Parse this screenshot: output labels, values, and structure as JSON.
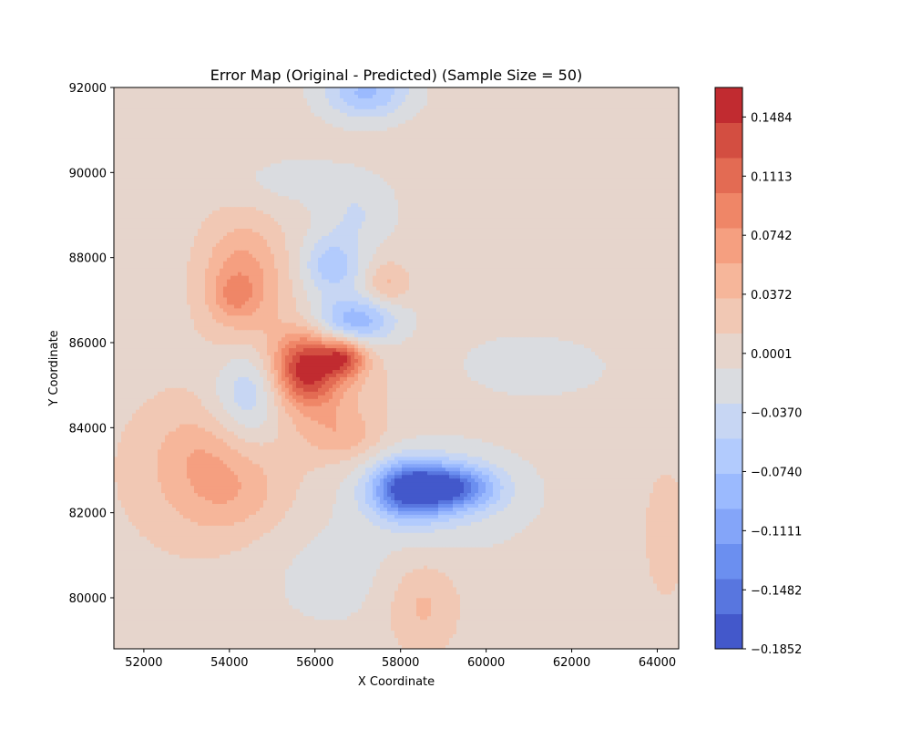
{
  "chart_data": {
    "type": "heatmap",
    "subtype": "filled-contour",
    "title": "Error Map (Original - Predicted) (Sample Size = 50)",
    "xlabel": "X Coordinate",
    "ylabel": "Y Coordinate",
    "xlim": [
      51300,
      64500
    ],
    "ylim": [
      78800,
      92000
    ],
    "x_ticks": [
      "52000",
      "54000",
      "56000",
      "58000",
      "60000",
      "62000",
      "64000"
    ],
    "y_ticks": [
      "80000",
      "82000",
      "84000",
      "86000",
      "88000",
      "90000",
      "92000"
    ],
    "colormap": "coolwarm",
    "background_color": "#dddddd",
    "colorbar": {
      "min": -0.1852,
      "max": 0.1669,
      "levels": 19,
      "tick_labels": [
        "0.1484",
        "0.1113",
        "0.0742",
        "0.0372",
        "0.0001",
        "−0.0370",
        "−0.0740",
        "−0.1111",
        "−0.1482",
        "−0.1852"
      ],
      "tick_values": [
        0.1484,
        0.1113,
        0.0742,
        0.0372,
        0.0001,
        -0.037,
        -0.074,
        -0.1111,
        -0.1482,
        -0.1852
      ],
      "colors": [
        "#4358cb",
        "#5876df",
        "#6b8ff0",
        "#84a5f9",
        "#9bbafe",
        "#b2cbfd",
        "#c7d6f3",
        "#dadce0",
        "#e6d5cc",
        "#f1c8b4",
        "#f6b69a",
        "#f59f80",
        "#ef8667",
        "#e36b53",
        "#d34e41",
        "#c12b30"
      ]
    },
    "regions": [
      {
        "name": "broad-warm-west",
        "x": 53200,
        "y": 83000,
        "sx": 1400,
        "sy": 1500,
        "v": 0.03
      },
      {
        "name": "warm-blob-53800-82500",
        "x": 54000,
        "y": 82500,
        "sx": 900,
        "sy": 700,
        "v": 0.035
      },
      {
        "name": "warm-blob-53500-83500",
        "x": 53300,
        "y": 83500,
        "sx": 700,
        "sy": 600,
        "v": 0.02
      },
      {
        "name": "warm-ridge-54500-87500",
        "x": 54300,
        "y": 87500,
        "sx": 700,
        "sy": 1000,
        "v": 0.07
      },
      {
        "name": "warm-peak-54000-87200",
        "x": 54100,
        "y": 87100,
        "sx": 350,
        "sy": 350,
        "v": 0.03
      },
      {
        "name": "hotspot-55800-85400",
        "x": 55800,
        "y": 85400,
        "sx": 550,
        "sy": 600,
        "v": 0.13
      },
      {
        "name": "hotspot-56700-85700",
        "x": 56700,
        "y": 85650,
        "sx": 350,
        "sy": 300,
        "v": 0.1
      },
      {
        "name": "warm-halo-56000-85000",
        "x": 56000,
        "y": 85000,
        "sx": 1100,
        "sy": 1100,
        "v": 0.04
      },
      {
        "name": "warm-blob-56800-83800",
        "x": 56700,
        "y": 83800,
        "sx": 600,
        "sy": 400,
        "v": 0.035
      },
      {
        "name": "warm-blob-57800-87300",
        "x": 57700,
        "y": 87400,
        "sx": 350,
        "sy": 350,
        "v": 0.04
      },
      {
        "name": "warm-south-58500-79800",
        "x": 58500,
        "y": 79800,
        "sx": 600,
        "sy": 800,
        "v": 0.04
      },
      {
        "name": "warm-east-64000-81500",
        "x": 64200,
        "y": 81500,
        "sx": 500,
        "sy": 1500,
        "v": 0.02
      },
      {
        "name": "warm-northwest-52500-90000",
        "x": 52300,
        "y": 90300,
        "sx": 1100,
        "sy": 600,
        "v": 0.012
      },
      {
        "name": "warm-northeast-63500-91000",
        "x": 63300,
        "y": 91200,
        "sx": 1100,
        "sy": 900,
        "v": 0.012
      },
      {
        "name": "warm-east-62500-87500",
        "x": 62800,
        "y": 87800,
        "sx": 1500,
        "sy": 1200,
        "v": 0.01
      },
      {
        "name": "cold-min-58200-82500",
        "x": 58200,
        "y": 82550,
        "sx": 600,
        "sy": 450,
        "v": -0.16
      },
      {
        "name": "cold-ridge-59300-82600",
        "x": 59300,
        "y": 82600,
        "sx": 650,
        "sy": 350,
        "v": -0.12
      },
      {
        "name": "cold-halo-58800-82400",
        "x": 58900,
        "y": 82400,
        "sx": 1400,
        "sy": 800,
        "v": -0.04
      },
      {
        "name": "cold-band-57000-86500",
        "x": 56900,
        "y": 86500,
        "sx": 700,
        "sy": 400,
        "v": -0.1
      },
      {
        "name": "cold-blob-56600-87800",
        "x": 56400,
        "y": 87800,
        "sx": 500,
        "sy": 500,
        "v": -0.07
      },
      {
        "name": "cold-blob-54600-84800",
        "x": 54500,
        "y": 84800,
        "sx": 600,
        "sy": 800,
        "v": -0.07
      },
      {
        "name": "cold-north-57200-91900",
        "x": 57200,
        "y": 91900,
        "sx": 700,
        "sy": 450,
        "v": -0.08
      },
      {
        "name": "cold-east-61000-85500",
        "x": 61200,
        "y": 85500,
        "sx": 1400,
        "sy": 600,
        "v": -0.02
      },
      {
        "name": "cold-south-56500-80500",
        "x": 56400,
        "y": 80500,
        "sx": 1200,
        "sy": 900,
        "v": -0.018
      },
      {
        "name": "cold-north-56000-89800",
        "x": 55600,
        "y": 89800,
        "sx": 1200,
        "sy": 400,
        "v": -0.02
      },
      {
        "name": "cold-north-57000-89000",
        "x": 57000,
        "y": 89000,
        "sx": 600,
        "sy": 500,
        "v": -0.03
      }
    ]
  }
}
